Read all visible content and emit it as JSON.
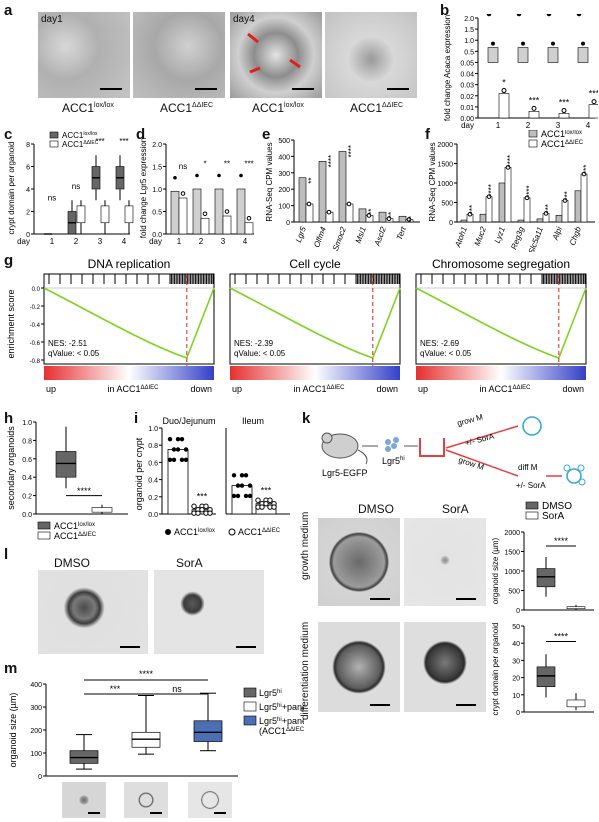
{
  "panels": {
    "a": {
      "label": "a",
      "day1": "day1",
      "day4": "day4",
      "genotype_ctrl": "ACC1",
      "sup_ctrl": "lox/lox",
      "genotype_ko": "ACC1",
      "sup_ko": "ΔΔIEC"
    },
    "b": {
      "label": "b",
      "ylabel": "fold change Acaca expression",
      "day_label": "day",
      "days": [
        "1",
        "2",
        "3",
        "4"
      ],
      "yticks": [
        "0.00",
        "0.01",
        "0.02",
        "0.03",
        "0.04",
        "0.05",
        "0.5",
        "1.0",
        "1.5",
        "2.0"
      ],
      "sig": [
        "*",
        "***",
        "***",
        "***"
      ],
      "chart_data": {
        "type": "bar",
        "categories": [
          "1",
          "2",
          "3",
          "4"
        ],
        "series": [
          {
            "name": "ACC1lox/lox",
            "values": [
              1.0,
              1.0,
              1.0,
              1.0
            ]
          },
          {
            "name": "ACC1ΔΔIEC",
            "values": [
              0.022,
              0.006,
              0.004,
              0.012
            ]
          }
        ]
      }
    },
    "c": {
      "label": "c",
      "ylabel": "crypt domain per organoid",
      "day_label": "day",
      "days": [
        "1",
        "2",
        "3",
        "4"
      ],
      "yticks": [
        "0",
        "2",
        "4",
        "6",
        "8"
      ],
      "sig": [
        "ns",
        "ns",
        "***",
        "***"
      ],
      "legend": [
        {
          "name": "ACC1",
          "sup": "lox/lox",
          "color": "#666666"
        },
        {
          "name": "ACC1",
          "sup": "ΔΔIEC",
          "color": "#ffffff"
        }
      ],
      "chart_data": {
        "type": "box",
        "categories": [
          "1",
          "2",
          "3",
          "4"
        ],
        "series": [
          {
            "name": "ACC1lox/lox",
            "median": [
              0,
              1,
              5,
              5
            ]
          },
          {
            "name": "ACC1ΔΔIEC",
            "median": [
              0,
              1,
              1,
              1
            ]
          }
        ],
        "ylim": [
          0,
          8
        ]
      }
    },
    "d": {
      "label": "d",
      "ylabel": "fold change Lgr5 expression",
      "day_label": "day",
      "days": [
        "1",
        "2",
        "3",
        "4"
      ],
      "yticks": [
        "0.0",
        "0.5",
        "1.0",
        "1.5",
        "2.0"
      ],
      "sig": [
        "ns",
        "*",
        "**",
        "***"
      ],
      "chart_data": {
        "type": "bar",
        "categories": [
          "1",
          "2",
          "3",
          "4"
        ],
        "series": [
          {
            "name": "ACC1lox/lox",
            "values": [
              0.95,
              1.0,
              1.0,
              1.0
            ]
          },
          {
            "name": "ACC1ΔΔIEC",
            "values": [
              0.8,
              0.35,
              0.4,
              0.25
            ]
          }
        ],
        "ylim": [
          0,
          2.0
        ]
      }
    },
    "e": {
      "label": "e",
      "ylabel": "RNA-Seq CPM values",
      "yticks": [
        "0",
        "100",
        "200",
        "300",
        "400",
        "500"
      ],
      "genes": [
        "Lgr5",
        "Olfm4",
        "Smoc2",
        "Msi1",
        "Ascl2",
        "Tert"
      ],
      "sig": [
        "**",
        "****",
        "****",
        "**",
        "**",
        "**"
      ],
      "chart_data": {
        "type": "bar",
        "categories": [
          "Lgr5",
          "Olfm4",
          "Smoc2",
          "Msi1",
          "Ascl2",
          "Tert"
        ],
        "series": [
          {
            "name": "ACC1lox/lox",
            "values": [
              270,
              370,
              430,
              80,
              60,
              35
            ]
          },
          {
            "name": "ACC1ΔΔIEC",
            "values": [
              110,
              60,
              110,
              40,
              20,
              15
            ]
          }
        ],
        "ylim": [
          0,
          500
        ]
      }
    },
    "f": {
      "label": "f",
      "ylabel": "RNA-Seq CPM values",
      "yticks": [
        "0",
        "500",
        "1000",
        "1500",
        "2000"
      ],
      "genes": [
        "Atoh1",
        "Muc2",
        "Lyz1",
        "Reg3g",
        "Slc5a11",
        "Alpi",
        "Chgb"
      ],
      "sig": [
        "***",
        "****",
        "****",
        "****",
        "***",
        "***",
        "***"
      ],
      "legend": [
        {
          "name": "ACC1",
          "sup": "lox/lox",
          "color": "#bdbdbd"
        },
        {
          "name": "ACC1",
          "sup": "ΔΔIEC",
          "color": "#ffffff"
        }
      ],
      "chart_data": {
        "type": "bar",
        "categories": [
          "Atoh1",
          "Muc2",
          "Lyz1",
          "Reg3g",
          "Slc5a11",
          "Alpi",
          "Chgb"
        ],
        "series": [
          {
            "name": "ACC1lox/lox",
            "values": [
              50,
              200,
              1000,
              50,
              80,
              170,
              800
            ]
          },
          {
            "name": "ACC1ΔΔIEC",
            "values": [
              200,
              650,
              1400,
              620,
              220,
              550,
              1230
            ]
          }
        ],
        "ylim": [
          0,
          2000
        ]
      }
    },
    "g": {
      "label": "g",
      "ylabel": "enrichment score",
      "yticks": [
        "0.0",
        "-0.2",
        "-0.4",
        "-0.6",
        "-0.8"
      ],
      "up": "up",
      "in_label": "in ACC1",
      "in_sup": "ΔΔIEC",
      "down": "down",
      "plots": [
        {
          "title": "DNA replication",
          "nes": "NES: -2.51",
          "q": "qValue: < 0.05"
        },
        {
          "title": "Cell cycle",
          "nes": "NES: -2.39",
          "q": "qValue: < 0.05"
        },
        {
          "title": "Chromosome segregation",
          "nes": "NES: -2.69",
          "q": "qValue: < 0.05"
        }
      ]
    },
    "h": {
      "label": "h",
      "ylabel": "secondary organoids",
      "yticks": [
        "0.0",
        "0.2",
        "0.4",
        "0.6",
        "0.8",
        "1.0"
      ],
      "sig": "****",
      "legend": [
        {
          "name": "ACC1",
          "sup": "lox/lox",
          "color": "#666666"
        },
        {
          "name": "ACC1",
          "sup": "ΔΔIEC",
          "color": "#ffffff"
        }
      ],
      "chart_data": {
        "type": "box",
        "categories": [
          "ACC1lox/lox",
          "ACC1ΔΔIEC"
        ],
        "median": [
          0.55,
          0.05
        ],
        "ylim": [
          0,
          1.0
        ]
      }
    },
    "i": {
      "label": "i",
      "ylabel": "organoid per crypt",
      "yticks": [
        "0.0",
        "0.2",
        "0.4",
        "0.6",
        "0.8",
        "1.0"
      ],
      "groups": [
        "Duo/Jejunum",
        "Ileum"
      ],
      "sig": [
        "***",
        "***"
      ],
      "legend": [
        {
          "name": "ACC1",
          "sup": "lox/lox"
        },
        {
          "name": "ACC1",
          "sup": "ΔΔIEC"
        }
      ],
      "chart_data": {
        "type": "scatter-bar",
        "categories": [
          "Duo/Jejunum",
          "Ileum"
        ],
        "series": [
          {
            "name": "ACC1lox/lox",
            "values": [
              0.75,
              0.33
            ]
          },
          {
            "name": "ACC1ΔΔIEC",
            "values": [
              0.05,
              0.12
            ]
          }
        ],
        "ylim": [
          0,
          1.0
        ]
      }
    },
    "k": {
      "label": "k",
      "mouse_label": "Lgr5-EGFP",
      "cell_label": "Lgr5",
      "cell_sup": "hi",
      "grow_m": "grow M",
      "sora": "+/- SorA",
      "diff_m": "diff M",
      "col_dmso": "DMSO",
      "col_sora": "SorA",
      "row_growth": "growth medium",
      "row_diff": "differentiation medium",
      "legend": [
        {
          "name": "DMSO",
          "color": "#666666"
        },
        {
          "name": "SorA",
          "color": "#ffffff"
        }
      ],
      "size_chart": {
        "ylabel": "organoid size (µm)",
        "yticks": [
          "0",
          "500",
          "1000",
          "1500",
          "2000"
        ],
        "sig": "****",
        "chart_data": {
          "type": "box",
          "categories": [
            "DMSO",
            "SorA"
          ],
          "median": [
            850,
            60
          ],
          "ylim": [
            0,
            2000
          ]
        }
      },
      "crypt_chart": {
        "ylabel": "crypt domain per organoid",
        "yticks": [
          "0",
          "10",
          "20",
          "30",
          "40",
          "50"
        ],
        "sig": "****",
        "chart_data": {
          "type": "box",
          "categories": [
            "DMSO",
            "SorA"
          ],
          "median": [
            21,
            5
          ],
          "ylim": [
            0,
            50
          ]
        }
      }
    },
    "l": {
      "label": "l",
      "col_dmso": "DMSO",
      "col_sora": "SorA"
    },
    "m": {
      "label": "m",
      "ylabel": "organoid size (µm)",
      "yticks": [
        "0",
        "100",
        "200",
        "300",
        "400"
      ],
      "sig": [
        "***",
        "****",
        "ns"
      ],
      "legend": [
        {
          "name": "Lgr5",
          "sup": "hi",
          "extra": "",
          "color": "#666666"
        },
        {
          "name": "Lgr5",
          "sup": "hi",
          "extra": "+paneth",
          "color": "#ffffff"
        },
        {
          "name": "Lgr5",
          "sup": "hi",
          "extra": "+paneth",
          "extra2": "(ACC1",
          "extra2_sup": "ΔΔIEC",
          "extra2_end": ")",
          "color": "#4a6fb5"
        }
      ],
      "chart_data": {
        "type": "box",
        "categories": [
          "Lgr5hi",
          "Lgr5hi+paneth",
          "Lgr5hi+paneth (ACC1ΔΔIEC)"
        ],
        "median": [
          80,
          160,
          190
        ],
        "ylim": [
          0,
          400
        ]
      }
    }
  }
}
